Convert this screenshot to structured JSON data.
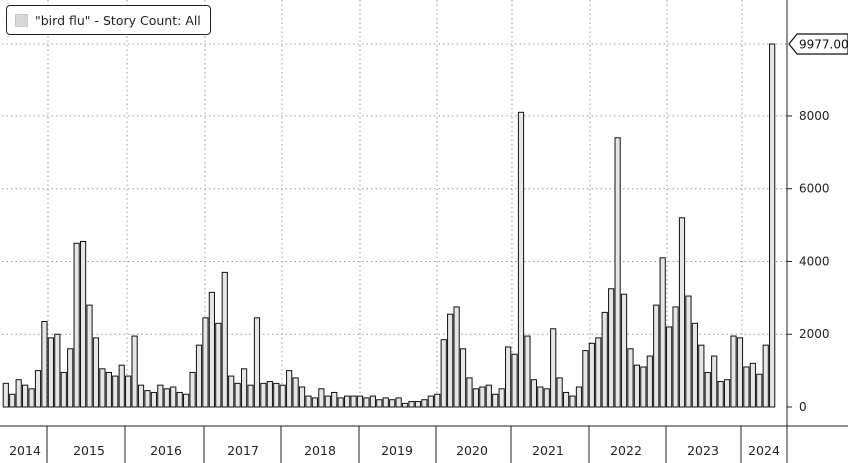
{
  "legend": {
    "label": "\"bird flu\" - Story Count: All",
    "swatch_color": "#d8d8d8"
  },
  "chart_data": {
    "type": "bar",
    "title": "",
    "xlabel": "",
    "ylabel": "",
    "ylim": [
      0,
      10000
    ],
    "yticks": [
      0,
      2000,
      4000,
      6000,
      8000
    ],
    "ytick_labels": [
      "0",
      "2000",
      "4000",
      "6000",
      "8000"
    ],
    "grid": true,
    "legend_placement": "top-left",
    "y_axis_side": "right",
    "bar_color": "#e6e6e6",
    "bar_edge_color": "#111111",
    "last_value": 9977,
    "last_value_label": "9977.00",
    "x_labels": [
      "2014",
      "2015",
      "2016",
      "2017",
      "2018",
      "2019",
      "2020",
      "2021",
      "2022",
      "2023",
      "2024"
    ],
    "series": [
      {
        "values": [
          650,
          350,
          750,
          600,
          500,
          1000,
          2350,
          1900,
          2000,
          950,
          1600,
          4500,
          4550,
          2800,
          1900,
          1050,
          950,
          850,
          1150,
          850,
          1950,
          600,
          450,
          400,
          600,
          500,
          550,
          400,
          350,
          950,
          1700,
          2450,
          3150,
          2300,
          3700,
          850,
          650,
          1050,
          600,
          2450,
          650,
          700,
          650,
          600,
          1000,
          800,
          550,
          300,
          250,
          500,
          300,
          400,
          250,
          300,
          300,
          300,
          250,
          300,
          200,
          250,
          200,
          250,
          100,
          150,
          150,
          200,
          300,
          350,
          1850,
          2550,
          2750,
          1600,
          800,
          500,
          550,
          600,
          350,
          500,
          1650,
          1450,
          8100,
          1950,
          750,
          550,
          500,
          2150,
          800,
          400,
          300,
          550,
          1550,
          1750,
          1900,
          2600,
          3250,
          7400,
          3100,
          1600,
          1150,
          1100,
          1400,
          2800,
          4100,
          2200,
          2750,
          5200,
          3050,
          2300,
          1700,
          950,
          1400,
          700,
          750,
          1950,
          1900,
          1100,
          1200,
          900,
          1700,
          9977
        ]
      }
    ]
  }
}
